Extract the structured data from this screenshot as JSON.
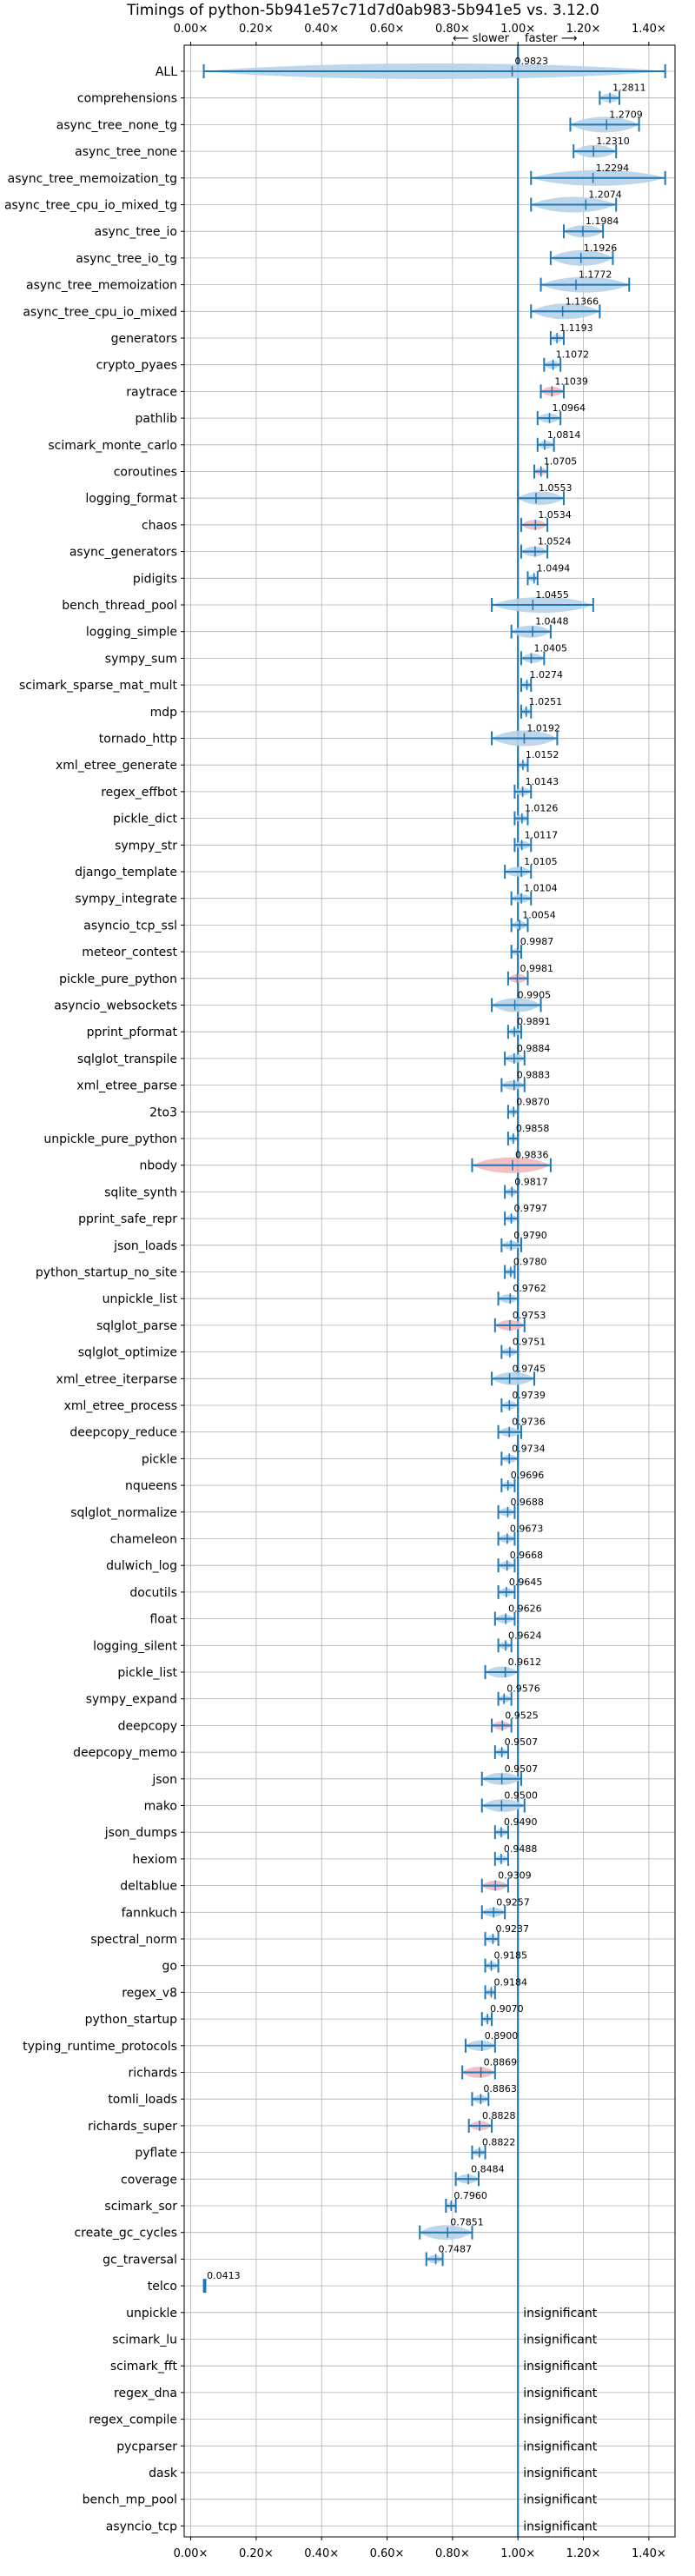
{
  "chart_data": {
    "type": "violin",
    "title": "Timings of python-5b941e57c71d7d0ab983-5b941e5 vs. 3.12.0",
    "slower_label": "⟵ slower",
    "faster_label": "faster ⟶",
    "xlim": [
      -0.02,
      1.48
    ],
    "xticks": [
      0.0,
      0.2,
      0.4,
      0.6,
      0.8,
      1.0,
      1.2,
      1.4
    ],
    "xtick_labels": [
      "0.00×",
      "0.20×",
      "0.40×",
      "0.60×",
      "0.80×",
      "1.00×",
      "1.20×",
      "1.40×"
    ],
    "reference_line": 1.0,
    "grid": true,
    "colors": {
      "normal": "#1f77b4",
      "normal_fill": "#b7d1e8",
      "highlight_fill": "#f2b8bf",
      "reference": "#1f77b4",
      "grid": "#b0b0b0",
      "text": "#000000"
    },
    "insignificant_label": "insignificant",
    "benchmarks": [
      {
        "name": "ALL",
        "value": 0.9823,
        "label": "0.9823",
        "min": 0.04,
        "max": 1.45,
        "highlight": false
      },
      {
        "name": "comprehensions",
        "value": 1.2811,
        "label": "1.2811",
        "min": 1.25,
        "max": 1.31,
        "highlight": false
      },
      {
        "name": "async_tree_none_tg",
        "value": 1.2709,
        "label": "1.2709",
        "min": 1.16,
        "max": 1.37,
        "highlight": false
      },
      {
        "name": "async_tree_none",
        "value": 1.231,
        "label": "1.2310",
        "min": 1.17,
        "max": 1.3,
        "highlight": false
      },
      {
        "name": "async_tree_memoization_tg",
        "value": 1.2294,
        "label": "1.2294",
        "min": 1.04,
        "max": 1.45,
        "highlight": false
      },
      {
        "name": "async_tree_cpu_io_mixed_tg",
        "value": 1.2074,
        "label": "1.2074",
        "min": 1.04,
        "max": 1.3,
        "highlight": false
      },
      {
        "name": "async_tree_io",
        "value": 1.1984,
        "label": "1.1984",
        "min": 1.14,
        "max": 1.26,
        "highlight": false
      },
      {
        "name": "async_tree_io_tg",
        "value": 1.1926,
        "label": "1.1926",
        "min": 1.1,
        "max": 1.29,
        "highlight": false
      },
      {
        "name": "async_tree_memoization",
        "value": 1.1772,
        "label": "1.1772",
        "min": 1.07,
        "max": 1.34,
        "highlight": false
      },
      {
        "name": "async_tree_cpu_io_mixed",
        "value": 1.1366,
        "label": "1.1366",
        "min": 1.04,
        "max": 1.25,
        "highlight": false
      },
      {
        "name": "generators",
        "value": 1.1193,
        "label": "1.1193",
        "min": 1.1,
        "max": 1.14,
        "highlight": false
      },
      {
        "name": "crypto_pyaes",
        "value": 1.1072,
        "label": "1.1072",
        "min": 1.08,
        "max": 1.13,
        "highlight": false
      },
      {
        "name": "raytrace",
        "value": 1.1039,
        "label": "1.1039",
        "min": 1.07,
        "max": 1.14,
        "highlight": true
      },
      {
        "name": "pathlib",
        "value": 1.0964,
        "label": "1.0964",
        "min": 1.06,
        "max": 1.13,
        "highlight": false
      },
      {
        "name": "scimark_monte_carlo",
        "value": 1.0814,
        "label": "1.0814",
        "min": 1.06,
        "max": 1.11,
        "highlight": false
      },
      {
        "name": "coroutines",
        "value": 1.0705,
        "label": "1.0705",
        "min": 1.05,
        "max": 1.09,
        "highlight": true
      },
      {
        "name": "logging_format",
        "value": 1.0553,
        "label": "1.0553",
        "min": 1.0,
        "max": 1.14,
        "highlight": false
      },
      {
        "name": "chaos",
        "value": 1.0534,
        "label": "1.0534",
        "min": 1.01,
        "max": 1.09,
        "highlight": true
      },
      {
        "name": "async_generators",
        "value": 1.0524,
        "label": "1.0524",
        "min": 1.01,
        "max": 1.09,
        "highlight": false
      },
      {
        "name": "pidigits",
        "value": 1.0494,
        "label": "1.0494",
        "min": 1.03,
        "max": 1.06,
        "highlight": false
      },
      {
        "name": "bench_thread_pool",
        "value": 1.0455,
        "label": "1.0455",
        "min": 0.92,
        "max": 1.23,
        "highlight": false
      },
      {
        "name": "logging_simple",
        "value": 1.0448,
        "label": "1.0448",
        "min": 0.98,
        "max": 1.1,
        "highlight": false
      },
      {
        "name": "sympy_sum",
        "value": 1.0405,
        "label": "1.0405",
        "min": 1.01,
        "max": 1.08,
        "highlight": false
      },
      {
        "name": "scimark_sparse_mat_mult",
        "value": 1.0274,
        "label": "1.0274",
        "min": 1.01,
        "max": 1.04,
        "highlight": false
      },
      {
        "name": "mdp",
        "value": 1.0251,
        "label": "1.0251",
        "min": 1.01,
        "max": 1.04,
        "highlight": false
      },
      {
        "name": "tornado_http",
        "value": 1.0192,
        "label": "1.0192",
        "min": 0.92,
        "max": 1.12,
        "highlight": false
      },
      {
        "name": "xml_etree_generate",
        "value": 1.0152,
        "label": "1.0152",
        "min": 1.0,
        "max": 1.03,
        "highlight": false
      },
      {
        "name": "regex_effbot",
        "value": 1.0143,
        "label": "1.0143",
        "min": 0.99,
        "max": 1.04,
        "highlight": false
      },
      {
        "name": "pickle_dict",
        "value": 1.0126,
        "label": "1.0126",
        "min": 0.99,
        "max": 1.03,
        "highlight": false
      },
      {
        "name": "sympy_str",
        "value": 1.0117,
        "label": "1.0117",
        "min": 0.99,
        "max": 1.04,
        "highlight": false
      },
      {
        "name": "django_template",
        "value": 1.0105,
        "label": "1.0105",
        "min": 0.96,
        "max": 1.04,
        "highlight": false
      },
      {
        "name": "sympy_integrate",
        "value": 1.0104,
        "label": "1.0104",
        "min": 0.98,
        "max": 1.04,
        "highlight": false
      },
      {
        "name": "asyncio_tcp_ssl",
        "value": 1.0054,
        "label": "1.0054",
        "min": 0.98,
        "max": 1.03,
        "highlight": false
      },
      {
        "name": "meteor_contest",
        "value": 0.9987,
        "label": "0.9987",
        "min": 0.98,
        "max": 1.01,
        "highlight": false
      },
      {
        "name": "pickle_pure_python",
        "value": 0.9981,
        "label": "0.9981",
        "min": 0.97,
        "max": 1.03,
        "highlight": true
      },
      {
        "name": "asyncio_websockets",
        "value": 0.9905,
        "label": "0.9905",
        "min": 0.92,
        "max": 1.07,
        "highlight": false
      },
      {
        "name": "pprint_pformat",
        "value": 0.9891,
        "label": "0.9891",
        "min": 0.97,
        "max": 1.01,
        "highlight": false
      },
      {
        "name": "sqlglot_transpile",
        "value": 0.9884,
        "label": "0.9884",
        "min": 0.96,
        "max": 1.02,
        "highlight": false
      },
      {
        "name": "xml_etree_parse",
        "value": 0.9883,
        "label": "0.9883",
        "min": 0.95,
        "max": 1.02,
        "highlight": false
      },
      {
        "name": "2to3",
        "value": 0.987,
        "label": "0.9870",
        "min": 0.97,
        "max": 1.0,
        "highlight": false
      },
      {
        "name": "unpickle_pure_python",
        "value": 0.9858,
        "label": "0.9858",
        "min": 0.97,
        "max": 1.0,
        "highlight": false
      },
      {
        "name": "nbody",
        "value": 0.9836,
        "label": "0.9836",
        "min": 0.86,
        "max": 1.1,
        "highlight": true
      },
      {
        "name": "sqlite_synth",
        "value": 0.9817,
        "label": "0.9817",
        "min": 0.96,
        "max": 1.0,
        "highlight": false
      },
      {
        "name": "pprint_safe_repr",
        "value": 0.9797,
        "label": "0.9797",
        "min": 0.96,
        "max": 1.0,
        "highlight": false
      },
      {
        "name": "json_loads",
        "value": 0.979,
        "label": "0.9790",
        "min": 0.95,
        "max": 1.01,
        "highlight": false
      },
      {
        "name": "python_startup_no_site",
        "value": 0.978,
        "label": "0.9780",
        "min": 0.96,
        "max": 0.99,
        "highlight": false
      },
      {
        "name": "unpickle_list",
        "value": 0.9762,
        "label": "0.9762",
        "min": 0.94,
        "max": 1.0,
        "highlight": false
      },
      {
        "name": "sqlglot_parse",
        "value": 0.9753,
        "label": "0.9753",
        "min": 0.93,
        "max": 1.02,
        "highlight": true
      },
      {
        "name": "sqlglot_optimize",
        "value": 0.9751,
        "label": "0.9751",
        "min": 0.95,
        "max": 1.0,
        "highlight": false
      },
      {
        "name": "xml_etree_iterparse",
        "value": 0.9745,
        "label": "0.9745",
        "min": 0.92,
        "max": 1.05,
        "highlight": false
      },
      {
        "name": "xml_etree_process",
        "value": 0.9739,
        "label": "0.9739",
        "min": 0.95,
        "max": 1.0,
        "highlight": false
      },
      {
        "name": "deepcopy_reduce",
        "value": 0.9736,
        "label": "0.9736",
        "min": 0.94,
        "max": 1.01,
        "highlight": false
      },
      {
        "name": "pickle",
        "value": 0.9734,
        "label": "0.9734",
        "min": 0.95,
        "max": 1.0,
        "highlight": false
      },
      {
        "name": "nqueens",
        "value": 0.9696,
        "label": "0.9696",
        "min": 0.95,
        "max": 0.99,
        "highlight": false
      },
      {
        "name": "sqlglot_normalize",
        "value": 0.9688,
        "label": "0.9688",
        "min": 0.94,
        "max": 0.99,
        "highlight": false
      },
      {
        "name": "chameleon",
        "value": 0.9673,
        "label": "0.9673",
        "min": 0.94,
        "max": 0.99,
        "highlight": false
      },
      {
        "name": "dulwich_log",
        "value": 0.9668,
        "label": "0.9668",
        "min": 0.94,
        "max": 0.99,
        "highlight": false
      },
      {
        "name": "docutils",
        "value": 0.9645,
        "label": "0.9645",
        "min": 0.94,
        "max": 0.99,
        "highlight": false
      },
      {
        "name": "float",
        "value": 0.9626,
        "label": "0.9626",
        "min": 0.93,
        "max": 0.99,
        "highlight": false
      },
      {
        "name": "logging_silent",
        "value": 0.9624,
        "label": "0.9624",
        "min": 0.94,
        "max": 0.98,
        "highlight": false
      },
      {
        "name": "pickle_list",
        "value": 0.9612,
        "label": "0.9612",
        "min": 0.9,
        "max": 1.0,
        "highlight": false
      },
      {
        "name": "sympy_expand",
        "value": 0.9576,
        "label": "0.9576",
        "min": 0.94,
        "max": 0.98,
        "highlight": false
      },
      {
        "name": "deepcopy",
        "value": 0.9525,
        "label": "0.9525",
        "min": 0.92,
        "max": 0.98,
        "highlight": true
      },
      {
        "name": "deepcopy_memo",
        "value": 0.9507,
        "label": "0.9507",
        "min": 0.93,
        "max": 0.97,
        "highlight": false
      },
      {
        "name": "json",
        "value": 0.9507,
        "label": "0.9507",
        "min": 0.89,
        "max": 1.01,
        "highlight": false
      },
      {
        "name": "mako",
        "value": 0.95,
        "label": "0.9500",
        "min": 0.89,
        "max": 1.02,
        "highlight": false
      },
      {
        "name": "json_dumps",
        "value": 0.949,
        "label": "0.9490",
        "min": 0.93,
        "max": 0.97,
        "highlight": false
      },
      {
        "name": "hexiom",
        "value": 0.9488,
        "label": "0.9488",
        "min": 0.93,
        "max": 0.97,
        "highlight": false
      },
      {
        "name": "deltablue",
        "value": 0.9309,
        "label": "0.9309",
        "min": 0.89,
        "max": 0.97,
        "highlight": true
      },
      {
        "name": "fannkuch",
        "value": 0.9257,
        "label": "0.9257",
        "min": 0.89,
        "max": 0.96,
        "highlight": false
      },
      {
        "name": "spectral_norm",
        "value": 0.9237,
        "label": "0.9237",
        "min": 0.9,
        "max": 0.94,
        "highlight": false
      },
      {
        "name": "go",
        "value": 0.9185,
        "label": "0.9185",
        "min": 0.9,
        "max": 0.94,
        "highlight": false
      },
      {
        "name": "regex_v8",
        "value": 0.9184,
        "label": "0.9184",
        "min": 0.9,
        "max": 0.93,
        "highlight": false
      },
      {
        "name": "python_startup",
        "value": 0.907,
        "label": "0.9070",
        "min": 0.89,
        "max": 0.92,
        "highlight": false
      },
      {
        "name": "typing_runtime_protocols",
        "value": 0.89,
        "label": "0.8900",
        "min": 0.84,
        "max": 0.93,
        "highlight": false
      },
      {
        "name": "richards",
        "value": 0.8869,
        "label": "0.8869",
        "min": 0.83,
        "max": 0.93,
        "highlight": true
      },
      {
        "name": "tomli_loads",
        "value": 0.8863,
        "label": "0.8863",
        "min": 0.86,
        "max": 0.91,
        "highlight": false
      },
      {
        "name": "richards_super",
        "value": 0.8828,
        "label": "0.8828",
        "min": 0.85,
        "max": 0.92,
        "highlight": true
      },
      {
        "name": "pyflate",
        "value": 0.8822,
        "label": "0.8822",
        "min": 0.86,
        "max": 0.9,
        "highlight": false
      },
      {
        "name": "coverage",
        "value": 0.8484,
        "label": "0.8484",
        "min": 0.81,
        "max": 0.88,
        "highlight": false
      },
      {
        "name": "scimark_sor",
        "value": 0.796,
        "label": "0.7960",
        "min": 0.78,
        "max": 0.81,
        "highlight": false
      },
      {
        "name": "create_gc_cycles",
        "value": 0.7851,
        "label": "0.7851",
        "min": 0.7,
        "max": 0.86,
        "highlight": false
      },
      {
        "name": "gc_traversal",
        "value": 0.7487,
        "label": "0.7487",
        "min": 0.72,
        "max": 0.77,
        "highlight": false
      },
      {
        "name": "telco",
        "value": 0.0413,
        "label": "0.0413",
        "min": 0.04,
        "max": 0.045,
        "highlight": false
      },
      {
        "name": "unpickle",
        "insignificant": true
      },
      {
        "name": "scimark_lu",
        "insignificant": true
      },
      {
        "name": "scimark_fft",
        "insignificant": true
      },
      {
        "name": "regex_dna",
        "insignificant": true
      },
      {
        "name": "regex_compile",
        "insignificant": true
      },
      {
        "name": "pycparser",
        "insignificant": true
      },
      {
        "name": "dask",
        "insignificant": true
      },
      {
        "name": "bench_mp_pool",
        "insignificant": true
      },
      {
        "name": "asyncio_tcp",
        "insignificant": true
      }
    ]
  }
}
